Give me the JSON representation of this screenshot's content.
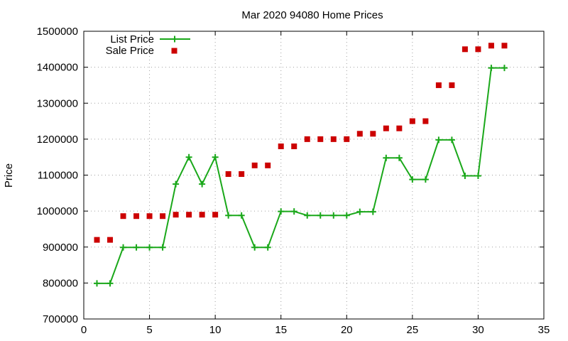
{
  "chart_data": {
    "type": "line",
    "title": "Mar 2020 94080 Home Prices",
    "xlabel": "",
    "ylabel": "Price",
    "xlim": [
      0,
      35
    ],
    "ylim": [
      700000,
      1500000
    ],
    "x_ticks": [
      0,
      5,
      10,
      15,
      20,
      25,
      30,
      35
    ],
    "y_ticks": [
      700000,
      800000,
      900000,
      1000000,
      1100000,
      1200000,
      1300000,
      1400000,
      1500000
    ],
    "grid": true,
    "legend_position": "top-left",
    "series": [
      {
        "name": "List Price",
        "style": "line+cross",
        "color": "#1aa81a",
        "x": [
          1,
          2,
          3,
          4,
          5,
          6,
          7,
          8,
          9,
          10,
          11,
          12,
          13,
          14,
          15,
          16,
          17,
          18,
          19,
          20,
          21,
          22,
          23,
          24,
          25,
          26,
          27,
          28,
          29,
          30,
          31,
          32
        ],
        "y": [
          799000,
          799000,
          899000,
          899000,
          899000,
          899000,
          1075000,
          1150000,
          1075000,
          1150000,
          988000,
          988000,
          899000,
          899000,
          999000,
          999000,
          988000,
          988000,
          988000,
          988000,
          998000,
          998000,
          1148000,
          1148000,
          1088000,
          1088000,
          1198000,
          1198000,
          1098000,
          1098000,
          1398000,
          1398000
        ]
      },
      {
        "name": "Sale Price",
        "style": "square",
        "color": "#cc0000",
        "x": [
          1,
          2,
          3,
          4,
          5,
          6,
          7,
          8,
          9,
          10,
          11,
          12,
          13,
          14,
          15,
          16,
          17,
          18,
          19,
          20,
          21,
          22,
          23,
          24,
          25,
          26,
          27,
          28,
          29,
          30,
          31,
          32
        ],
        "y": [
          920000,
          920000,
          986000,
          986000,
          986000,
          986000,
          990000,
          990000,
          990000,
          990000,
          1103000,
          1103000,
          1127000,
          1127000,
          1180000,
          1180000,
          1200000,
          1200000,
          1200000,
          1200000,
          1215000,
          1215000,
          1230000,
          1230000,
          1250000,
          1250000,
          1350000,
          1350000,
          1450000,
          1450000,
          1460000,
          1460000
        ]
      }
    ]
  }
}
